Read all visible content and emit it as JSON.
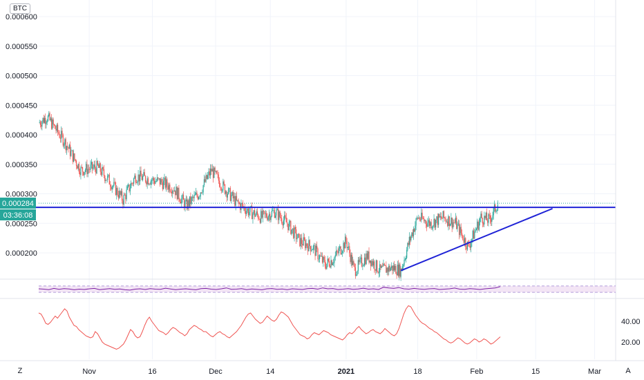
{
  "symbol_badge": "BTC",
  "corner_left": "Z",
  "corner_right": "A",
  "price_scale": {
    "labels": [
      "0.000600",
      "0.000550",
      "0.000500",
      "0.000450",
      "0.000400",
      "0.000350",
      "0.000300",
      "0.000250",
      "0.000200"
    ],
    "last_price": "0.000284",
    "countdown": "03:36:08",
    "last_price_color": "#26a69a"
  },
  "lower_scale": {
    "labels": [
      "40.00",
      "20.00"
    ]
  },
  "time_axis": {
    "labels": [
      "Nov",
      "16",
      "Dec",
      "14",
      "2021",
      "18",
      "Feb",
      "15",
      "Mar"
    ],
    "bold_label": "2021"
  },
  "colors": {
    "up": "#26a69a",
    "down": "#ef5350",
    "trendline": "#1e22d6",
    "rsi": "#7b1fa2",
    "rsi_band": "#f3e5f5",
    "lower_line": "#ef5350"
  },
  "chart_data": [
    {
      "type": "candlestick",
      "title": "",
      "y_axis": {
        "min": 0.00016,
        "max": 0.0006,
        "ticks": [
          0.0002,
          0.00025,
          0.0003,
          0.00035,
          0.0004,
          0.00045,
          0.0005,
          0.00055,
          0.0006
        ]
      },
      "x_axis": {
        "start": "2020-10-20",
        "end": "2021-03-06",
        "ticks": [
          "Nov",
          "16",
          "Dec",
          "14",
          "2021",
          "18",
          "Feb",
          "15",
          "Mar"
        ]
      },
      "close_path": [
        {
          "date": "2020-10-20",
          "value": 0.00042
        },
        {
          "date": "2020-10-22",
          "value": 0.00043
        },
        {
          "date": "2020-10-26",
          "value": 0.00039
        },
        {
          "date": "2020-10-30",
          "value": 0.00034
        },
        {
          "date": "2020-11-03",
          "value": 0.000345
        },
        {
          "date": "2020-11-06",
          "value": 0.00032
        },
        {
          "date": "2020-11-09",
          "value": 0.00029
        },
        {
          "date": "2020-11-12",
          "value": 0.00033
        },
        {
          "date": "2020-11-15",
          "value": 0.000325
        },
        {
          "date": "2020-11-18",
          "value": 0.00032
        },
        {
          "date": "2020-11-21",
          "value": 0.00031
        },
        {
          "date": "2020-11-24",
          "value": 0.00028
        },
        {
          "date": "2020-11-27",
          "value": 0.0003
        },
        {
          "date": "2020-11-30",
          "value": 0.00034
        },
        {
          "date": "2020-12-03",
          "value": 0.00031
        },
        {
          "date": "2020-12-06",
          "value": 0.000285
        },
        {
          "date": "2020-12-09",
          "value": 0.00027
        },
        {
          "date": "2020-12-12",
          "value": 0.00026
        },
        {
          "date": "2020-12-15",
          "value": 0.00027
        },
        {
          "date": "2020-12-18",
          "value": 0.00025
        },
        {
          "date": "2020-12-21",
          "value": 0.00022
        },
        {
          "date": "2020-12-24",
          "value": 0.00021
        },
        {
          "date": "2020-12-27",
          "value": 0.00018
        },
        {
          "date": "2020-12-29",
          "value": 0.00019
        },
        {
          "date": "2021-01-01",
          "value": 0.00022
        },
        {
          "date": "2021-01-03",
          "value": 0.00017
        },
        {
          "date": "2021-01-06",
          "value": 0.000195
        },
        {
          "date": "2021-01-09",
          "value": 0.00017
        },
        {
          "date": "2021-01-12",
          "value": 0.000175
        },
        {
          "date": "2021-01-14",
          "value": 0.00017
        },
        {
          "date": "2021-01-16",
          "value": 0.00022
        },
        {
          "date": "2021-01-18",
          "value": 0.00026
        },
        {
          "date": "2021-01-21",
          "value": 0.00025
        },
        {
          "date": "2021-01-24",
          "value": 0.00026
        },
        {
          "date": "2021-01-27",
          "value": 0.00025
        },
        {
          "date": "2021-01-30",
          "value": 0.00021
        },
        {
          "date": "2021-02-02",
          "value": 0.00026
        },
        {
          "date": "2021-02-04",
          "value": 0.000255
        },
        {
          "date": "2021-02-06",
          "value": 0.000284
        }
      ],
      "horizontal_line": {
        "value": 0.000277,
        "color": "#1e22d6"
      },
      "ascending_trendline": {
        "from": {
          "date": "2021-01-14",
          "value": 0.00017
        },
        "to": {
          "date": "2021-02-19",
          "value": 0.000275
        }
      },
      "last_price_dotted": 0.000284
    },
    {
      "type": "line",
      "title": "",
      "name": "",
      "band": [
        0.3,
        0.7
      ],
      "values": [
        0.52,
        0.5,
        0.47,
        0.55,
        0.49,
        0.53,
        0.51,
        0.46,
        0.5,
        0.48,
        0.52,
        0.55,
        0.47,
        0.5,
        0.53,
        0.49,
        0.51,
        0.46,
        0.44,
        0.5,
        0.52,
        0.48,
        0.53,
        0.5,
        0.49,
        0.56,
        0.51,
        0.47,
        0.5,
        0.52,
        0.49,
        0.46,
        0.53,
        0.55,
        0.5,
        0.48,
        0.52,
        0.58,
        0.49,
        0.5,
        0.53,
        0.47,
        0.51,
        0.49,
        0.46,
        0.52,
        0.54,
        0.49,
        0.51,
        0.47,
        0.52,
        0.5,
        0.48,
        0.53,
        0.55,
        0.5,
        0.58,
        0.52,
        0.54,
        0.48,
        0.5,
        0.53,
        0.49,
        0.51,
        0.56,
        0.5,
        0.52,
        0.48,
        0.62,
        0.58,
        0.55,
        0.6,
        0.52,
        0.5,
        0.55,
        0.51,
        0.49,
        0.52,
        0.54,
        0.48,
        0.5,
        0.52,
        0.57,
        0.5,
        0.49,
        0.53,
        0.51,
        0.48,
        0.52,
        0.55,
        0.58,
        0.66
      ]
    },
    {
      "type": "line",
      "title": "",
      "name": "",
      "y_axis": {
        "min": 10,
        "max": 58,
        "ticks": [
          20,
          40
        ]
      },
      "values": [
        48,
        47,
        43,
        38,
        37,
        39,
        42,
        45,
        43,
        46,
        49,
        52,
        50,
        44,
        40,
        36,
        35,
        32,
        30,
        28,
        26,
        25,
        24,
        25,
        30,
        28,
        24,
        20,
        18,
        17,
        16,
        15,
        14,
        13,
        14,
        16,
        18,
        22,
        27,
        32,
        30,
        26,
        24,
        25,
        30,
        36,
        41,
        44,
        40,
        37,
        34,
        31,
        30,
        29,
        27,
        29,
        32,
        34,
        33,
        31,
        29,
        28,
        26,
        28,
        32,
        34,
        36,
        35,
        33,
        32,
        30,
        30,
        28,
        26,
        25,
        27,
        29,
        30,
        28,
        27,
        25,
        24,
        26,
        28,
        30,
        33,
        36,
        40,
        44,
        47,
        48,
        45,
        42,
        40,
        38,
        39,
        42,
        45,
        43,
        41,
        40,
        42,
        46,
        49,
        48,
        46,
        44,
        40,
        36,
        33,
        30,
        27,
        26,
        25,
        23,
        24,
        27,
        29,
        28,
        27,
        29,
        31,
        30,
        29,
        27,
        26,
        25,
        24,
        23,
        22,
        24,
        27,
        29,
        28,
        30,
        33,
        35,
        32,
        30,
        28,
        29,
        31,
        32,
        30,
        29,
        28,
        30,
        33,
        31,
        29,
        27,
        26,
        28,
        33,
        40,
        47,
        52,
        55,
        54,
        50,
        46,
        43,
        40,
        38,
        37,
        35,
        33,
        32,
        30,
        29,
        27,
        25,
        23,
        22,
        20,
        19,
        20,
        22,
        24,
        23,
        21,
        19,
        18,
        19,
        21,
        23,
        22,
        20,
        21,
        23,
        22,
        20,
        18,
        19,
        21,
        23,
        25
      ]
    }
  ]
}
